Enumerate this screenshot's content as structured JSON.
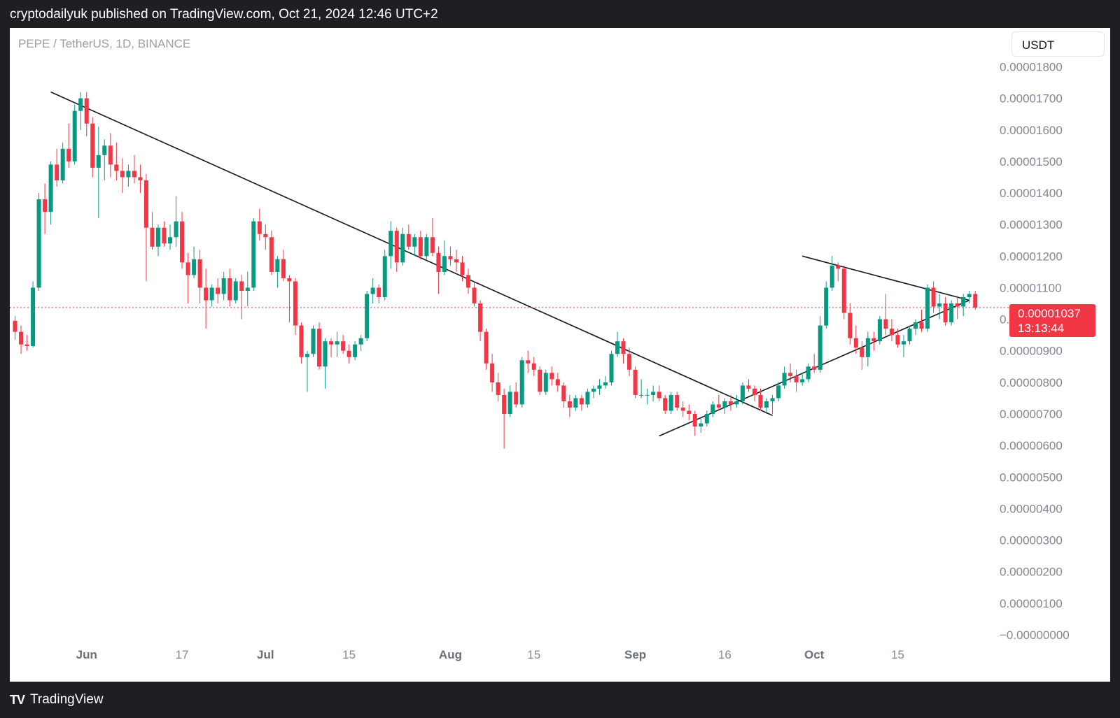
{
  "header": {
    "publisher": "cryptodailyuk published on TradingView.com, Oct 21, 2024 12:46 UTC+2"
  },
  "chart_header": {
    "symbol": "PEPE / TetherUS, 1D, BINANCE",
    "currency": "USDT"
  },
  "last_price": {
    "value": "0.00001037",
    "countdown": "13:13:44"
  },
  "footer": {
    "brand": "TradingView"
  },
  "colors": {
    "up": "#089981",
    "down": "#f23645",
    "trendline": "#131722",
    "price_line": "#f23645"
  },
  "chart_data": {
    "type": "candlestick",
    "x_start_date": "2024-05-20",
    "y_range": [
      -1e-07,
      1.9e-06
    ],
    "y_ticks": [
      "0.00001800",
      "0.00001700",
      "0.00001600",
      "0.00001500",
      "0.00001400",
      "0.00001300",
      "0.00001200",
      "0.00001100",
      "0.00001000",
      "0.00000900",
      "0.00000800",
      "0.00000700",
      "0.00000600",
      "0.00000500",
      "0.00000400",
      "0.00000300",
      "0.00000200",
      "0.00000100",
      "−0.00000000"
    ],
    "y_tick_values": [
      1.8e-05,
      1.7e-05,
      1.6e-05,
      1.5e-05,
      1.4e-05,
      1.3e-05,
      1.2e-05,
      1.1e-05,
      1e-05,
      9e-06,
      8e-06,
      7e-06,
      6e-06,
      5e-06,
      4e-06,
      3e-06,
      2e-06,
      1e-06,
      0
    ],
    "x_ticks": [
      {
        "label": "Jun",
        "date": "2024-06-01",
        "major": true
      },
      {
        "label": "17",
        "date": "2024-06-17",
        "major": false
      },
      {
        "label": "Jul",
        "date": "2024-07-01",
        "major": true
      },
      {
        "label": "15",
        "date": "2024-07-15",
        "major": false
      },
      {
        "label": "Aug",
        "date": "2024-08-01",
        "major": true
      },
      {
        "label": "15",
        "date": "2024-08-15",
        "major": false
      },
      {
        "label": "Sep",
        "date": "2024-09-01",
        "major": true
      },
      {
        "label": "16",
        "date": "2024-09-16",
        "major": false
      },
      {
        "label": "Oct",
        "date": "2024-10-01",
        "major": true
      },
      {
        "label": "15",
        "date": "2024-10-15",
        "major": false
      }
    ],
    "ohlc": [
      [
        9.95e-06,
        1.01e-05,
        9.35e-06,
        9.6e-06
      ],
      [
        9.6e-06,
        9.8e-06,
        8.9e-06,
        9.2e-06
      ],
      [
        9.2e-06,
        9.5e-06,
        9e-06,
        9.15e-06
      ],
      [
        9.15e-06,
        1.12e-05,
        9.1e-06,
        1.1e-05
      ],
      [
        1.1e-05,
        1.4e-05,
        1.09e-05,
        1.38e-05
      ],
      [
        1.38e-05,
        1.43e-05,
        1.27e-05,
        1.34e-05
      ],
      [
        1.34e-05,
        1.5e-05,
        1.3e-05,
        1.49e-05
      ],
      [
        1.49e-05,
        1.54e-05,
        1.42e-05,
        1.44e-05
      ],
      [
        1.44e-05,
        1.56e-05,
        1.43e-05,
        1.54e-05
      ],
      [
        1.54e-05,
        1.62e-05,
        1.48e-05,
        1.5e-05
      ],
      [
        1.5e-05,
        1.68e-05,
        1.49e-05,
        1.66e-05
      ],
      [
        1.66e-05,
        1.72e-05,
        1.6e-05,
        1.7e-05
      ],
      [
        1.7e-05,
        1.72e-05,
        1.58e-05,
        1.62e-05
      ],
      [
        1.62e-05,
        1.64e-05,
        1.45e-05,
        1.48e-05
      ],
      [
        1.48e-05,
        1.61e-05,
        1.32e-05,
        1.52e-05
      ],
      [
        1.52e-05,
        1.57e-05,
        1.44e-05,
        1.55e-05
      ],
      [
        1.55e-05,
        1.59e-05,
        1.45e-05,
        1.49e-05
      ],
      [
        1.49e-05,
        1.56e-05,
        1.44e-05,
        1.47e-05
      ],
      [
        1.47e-05,
        1.51e-05,
        1.4e-05,
        1.45e-05
      ],
      [
        1.45e-05,
        1.49e-05,
        1.42e-05,
        1.47e-05
      ],
      [
        1.47e-05,
        1.52e-05,
        1.43e-05,
        1.45e-05
      ],
      [
        1.45e-05,
        1.49e-05,
        1.4e-05,
        1.44e-05
      ],
      [
        1.44e-05,
        1.46e-05,
        1.12e-05,
        1.29e-05
      ],
      [
        1.29e-05,
        1.34e-05,
        1.22e-05,
        1.23e-05
      ],
      [
        1.23e-05,
        1.3e-05,
        1.2e-05,
        1.29e-05
      ],
      [
        1.29e-05,
        1.31e-05,
        1.23e-05,
        1.24e-05
      ],
      [
        1.24e-05,
        1.3e-05,
        1.22e-05,
        1.26e-05
      ],
      [
        1.26e-05,
        1.39e-05,
        1.23e-05,
        1.31e-05
      ],
      [
        1.31e-05,
        1.34e-05,
        1.16e-05,
        1.18e-05
      ],
      [
        1.18e-05,
        1.21e-05,
        1.05e-05,
        1.14e-05
      ],
      [
        1.14e-05,
        1.23e-05,
        1.13e-05,
        1.19e-05
      ],
      [
        1.19e-05,
        1.22e-05,
        1.05e-05,
        1.1e-05
      ],
      [
        1.1e-05,
        1.16e-05,
        9.7e-06,
        1.06e-05
      ],
      [
        1.06e-05,
        1.11e-05,
        1.04e-05,
        1.1e-05
      ],
      [
        1.1e-05,
        1.13e-05,
        1.05e-05,
        1.08e-05
      ],
      [
        1.08e-05,
        1.15e-05,
        1.06e-05,
        1.13e-05
      ],
      [
        1.13e-05,
        1.16e-05,
        1.04e-05,
        1.06e-05
      ],
      [
        1.06e-05,
        1.13e-05,
        1.05e-05,
        1.12e-05
      ],
      [
        1.12e-05,
        1.14e-05,
        1e-05,
        1.09e-05
      ],
      [
        1.09e-05,
        1.15e-05,
        1.04e-05,
        1.1e-05
      ],
      [
        1.1e-05,
        1.32e-05,
        1.09e-05,
        1.31e-05
      ],
      [
        1.31e-05,
        1.35e-05,
        1.25e-05,
        1.27e-05
      ],
      [
        1.27e-05,
        1.3e-05,
        1.22e-05,
        1.26e-05
      ],
      [
        1.26e-05,
        1.28e-05,
        1.14e-05,
        1.15e-05
      ],
      [
        1.15e-05,
        1.2e-05,
        1.1e-05,
        1.19e-05
      ],
      [
        1.19e-05,
        1.22e-05,
        1.12e-05,
        1.13e-05
      ],
      [
        1.13e-05,
        1.14e-05,
        9.9e-06,
        1.12e-05
      ],
      [
        1.12e-05,
        1.13e-05,
        9.5e-06,
        9.8e-06
      ],
      [
        9.8e-06,
        9.9e-06,
        8.6e-06,
        8.8e-06
      ],
      [
        8.8e-06,
        9e-06,
        7.7e-06,
        8.9e-06
      ],
      [
        8.9e-06,
        9.8e-06,
        8.8e-06,
        9.7e-06
      ],
      [
        9.7e-06,
        9.9e-06,
        8.4e-06,
        8.5e-06
      ],
      [
        8.5e-06,
        9.4e-06,
        7.8e-06,
        9.3e-06
      ],
      [
        9.3e-06,
        9.4e-06,
        8.8e-06,
        9.2e-06
      ],
      [
        9.2e-06,
        9.6e-06,
        8.8e-06,
        9.3e-06
      ],
      [
        9.3e-06,
        9.5e-06,
        8.9e-06,
        9e-06
      ],
      [
        9e-06,
        9.2e-06,
        8.6e-06,
        8.8e-06
      ],
      [
        8.8e-06,
        9.3e-06,
        8.7e-06,
        9.2e-06
      ],
      [
        9.2e-06,
        9.5e-06,
        9e-06,
        9.4e-06
      ],
      [
        9.4e-06,
        1.09e-05,
        9.3e-06,
        1.08e-05
      ],
      [
        1.08e-05,
        1.13e-05,
        1.05e-05,
        1.1e-05
      ],
      [
        1.1e-05,
        1.11e-05,
        1.05e-05,
        1.07e-05
      ],
      [
        1.07e-05,
        1.22e-05,
        1.06e-05,
        1.2e-05
      ],
      [
        1.2e-05,
        1.31e-05,
        1.16e-05,
        1.28e-05
      ],
      [
        1.28e-05,
        1.29e-05,
        1.15e-05,
        1.18e-05
      ],
      [
        1.18e-05,
        1.29e-05,
        1.17e-05,
        1.27e-05
      ],
      [
        1.27e-05,
        1.3e-05,
        1.22e-05,
        1.23e-05
      ],
      [
        1.23e-05,
        1.27e-05,
        1.2e-05,
        1.26e-05
      ],
      [
        1.26e-05,
        1.28e-05,
        1.19e-05,
        1.2e-05
      ],
      [
        1.2e-05,
        1.27e-05,
        1.19e-05,
        1.26e-05
      ],
      [
        1.26e-05,
        1.32e-05,
        1.2e-05,
        1.21e-05
      ],
      [
        1.21e-05,
        1.23e-05,
        1.08e-05,
        1.15e-05
      ],
      [
        1.15e-05,
        1.25e-05,
        1.14e-05,
        1.2e-05
      ],
      [
        1.2e-05,
        1.23e-05,
        1.17e-05,
        1.19e-05
      ],
      [
        1.19e-05,
        1.22e-05,
        1.15e-05,
        1.18e-05
      ],
      [
        1.18e-05,
        1.2e-05,
        1.12e-05,
        1.14e-05
      ],
      [
        1.14e-05,
        1.16e-05,
        1.08e-05,
        1.1e-05
      ],
      [
        1.1e-05,
        1.12e-05,
        1.04e-05,
        1.05e-05
      ],
      [
        1.05e-05,
        1.06e-05,
        9.3e-06,
        9.6e-06
      ],
      [
        9.6e-06,
        9.7e-06,
        8.4e-06,
        8.6e-06
      ],
      [
        8.6e-06,
        8.9e-06,
        7.7e-06,
        8e-06
      ],
      [
        8e-06,
        8.3e-06,
        7.4e-06,
        7.6e-06
      ],
      [
        7.6e-06,
        7.8e-06,
        5.9e-06,
        7e-06
      ],
      [
        7e-06,
        7.9e-06,
        6.9e-06,
        7.7e-06
      ],
      [
        7.7e-06,
        8e-06,
        7.2e-06,
        7.3e-06
      ],
      [
        7.3e-06,
        8.8e-06,
        7.2e-06,
        8.7e-06
      ],
      [
        8.7e-06,
        9e-06,
        8.3e-06,
        8.6e-06
      ],
      [
        8.6e-06,
        8.8e-06,
        8.2e-06,
        8.4e-06
      ],
      [
        8.4e-06,
        8.5e-06,
        7.6e-06,
        7.7e-06
      ],
      [
        7.7e-06,
        8.4e-06,
        7.6e-06,
        8.3e-06
      ],
      [
        8.3e-06,
        8.5e-06,
        7.9e-06,
        8.1e-06
      ],
      [
        8.1e-06,
        8.3e-06,
        7.7e-06,
        7.9e-06
      ],
      [
        7.9e-06,
        8e-06,
        7.2e-06,
        7.4e-06
      ],
      [
        7.4e-06,
        7.6e-06,
        6.9e-06,
        7.2e-06
      ],
      [
        7.2e-06,
        7.6e-06,
        7.1e-06,
        7.5e-06
      ],
      [
        7.5e-06,
        7.6e-06,
        7.1e-06,
        7.3e-06
      ],
      [
        7.3e-06,
        7.8e-06,
        7.2e-06,
        7.7e-06
      ],
      [
        7.7e-06,
        7.9e-06,
        7.5e-06,
        7.8e-06
      ],
      [
        7.8e-06,
        8.1e-06,
        7.6e-06,
        7.9e-06
      ],
      [
        7.9e-06,
        8.2e-06,
        7.8e-06,
        8e-06
      ],
      [
        8e-06,
        9e-06,
        7.9e-06,
        8.9e-06
      ],
      [
        8.9e-06,
        9.6e-06,
        8.8e-06,
        9.3e-06
      ],
      [
        9.3e-06,
        9.4e-06,
        8.6e-06,
        8.9e-06
      ],
      [
        8.9e-06,
        9.1e-06,
        8.2e-06,
        8.4e-06
      ],
      [
        8.4e-06,
        8.5e-06,
        7.5e-06,
        7.6e-06
      ],
      [
        7.6e-06,
        8.1e-06,
        7.5e-06,
        7.6e-06
      ],
      [
        7.6e-06,
        7.8e-06,
        7.3e-06,
        7.6e-06
      ],
      [
        7.6e-06,
        7.9e-06,
        7.4e-06,
        7.7e-06
      ],
      [
        7.7e-06,
        7.9e-06,
        7.4e-06,
        7.5e-06
      ],
      [
        7.5e-06,
        7.6e-06,
        7e-06,
        7.1e-06
      ],
      [
        7.1e-06,
        7.7e-06,
        7e-06,
        7.6e-06
      ],
      [
        7.6e-06,
        7.7e-06,
        7.1e-06,
        7.2e-06
      ],
      [
        7.2e-06,
        7.4e-06,
        6.9e-06,
        7.1e-06
      ],
      [
        7.1e-06,
        7.3e-06,
        6.8e-06,
        7e-06
      ],
      [
        7e-06,
        7.1e-06,
        6.3e-06,
        6.6e-06
      ],
      [
        6.6e-06,
        6.9e-06,
        6.4e-06,
        6.7e-06
      ],
      [
        6.7e-06,
        7.1e-06,
        6.6e-06,
        7e-06
      ],
      [
        7e-06,
        7.4e-06,
        6.9e-06,
        7.3e-06
      ],
      [
        7.3e-06,
        7.6e-06,
        7.1e-06,
        7.2e-06
      ],
      [
        7.2e-06,
        7.5e-06,
        7e-06,
        7.4e-06
      ],
      [
        7.4e-06,
        7.6e-06,
        7.1e-06,
        7.3e-06
      ],
      [
        7.3e-06,
        7.6e-06,
        7.2e-06,
        7.4e-06
      ],
      [
        7.4e-06,
        8e-06,
        7.3e-06,
        7.9e-06
      ],
      [
        7.9e-06,
        8.1e-06,
        7.7e-06,
        7.8e-06
      ],
      [
        7.8e-06,
        7.9e-06,
        7.4e-06,
        7.6e-06
      ],
      [
        7.6e-06,
        7.8e-06,
        7.1e-06,
        7.2e-06
      ],
      [
        7.2e-06,
        7.5e-06,
        7e-06,
        7.4e-06
      ],
      [
        7.4e-06,
        7.6e-06,
        7e-06,
        7.5e-06
      ],
      [
        7.5e-06,
        8e-06,
        7.4e-06,
        7.9e-06
      ],
      [
        7.9e-06,
        8.5e-06,
        7.8e-06,
        8.3e-06
      ],
      [
        8.3e-06,
        8.6e-06,
        8e-06,
        8.2e-06
      ],
      [
        8.2e-06,
        8.4e-06,
        7.7e-06,
        8e-06
      ],
      [
        8e-06,
        8.3e-06,
        7.9e-06,
        8.1e-06
      ],
      [
        8.1e-06,
        8.6e-06,
        8e-06,
        8.5e-06
      ],
      [
        8.5e-06,
        8.9e-06,
        8.3e-06,
        8.4e-06
      ],
      [
        8.4e-06,
        1.01e-05,
        8.3e-06,
        9.8e-06
      ],
      [
        9.8e-06,
        1.12e-05,
        9.7e-06,
        1.1e-05
      ],
      [
        1.1e-05,
        1.2e-05,
        1.09e-05,
        1.17e-05
      ],
      [
        1.17e-05,
        1.18e-05,
        1.12e-05,
        1.16e-05
      ],
      [
        1.16e-05,
        1.17e-05,
        1e-05,
        1.02e-05
      ],
      [
        1.02e-05,
        1.05e-05,
        9.2e-06,
        9.4e-06
      ],
      [
        9.4e-06,
        9.8e-06,
        8.9e-06,
        9.1e-06
      ],
      [
        9.1e-06,
        9.3e-06,
        8.4e-06,
        8.8e-06
      ],
      [
        8.8e-06,
        9.6e-06,
        8.5e-06,
        9.4e-06
      ],
      [
        9.4e-06,
        9.6e-06,
        9e-06,
        9.3e-06
      ],
      [
        9.3e-06,
        1.01e-05,
        9.2e-06,
        1e-05
      ],
      [
        1e-05,
        1.08e-05,
        9.5e-06,
        9.7e-06
      ],
      [
        9.7e-06,
        1e-05,
        9.3e-06,
        9.5e-06
      ],
      [
        9.5e-06,
        9.7e-06,
        9.1e-06,
        9.2e-06
      ],
      [
        9.2e-06,
        9.5e-06,
        8.8e-06,
        9.3e-06
      ],
      [
        9.3e-06,
        9.8e-06,
        9.2e-06,
        9.7e-06
      ],
      [
        9.7e-06,
        1e-05,
        9.5e-06,
        9.9e-06
      ],
      [
        9.9e-06,
        1.03e-05,
        9.6e-06,
        9.7e-06
      ],
      [
        9.7e-06,
        1.11e-05,
        9.6e-06,
        1.1e-05
      ],
      [
        1.1e-05,
        1.12e-05,
        1.02e-05,
        1.04e-05
      ],
      [
        1.04e-05,
        1.08e-05,
        1e-05,
        1.05e-05
      ],
      [
        1.05e-05,
        1.07e-05,
        9.8e-06,
        9.9e-06
      ],
      [
        9.9e-06,
        1.06e-05,
        9.8e-06,
        1.05e-05
      ],
      [
        1.05e-05,
        1.07e-05,
        1e-05,
        1.04e-05
      ],
      [
        1.04e-05,
        1.08e-05,
        1.01e-05,
        1.07e-05
      ],
      [
        1.07e-05,
        1.09e-05,
        1.05e-05,
        1.08e-05
      ],
      [
        1.08e-05,
        1.09e-05,
        1.03e-05,
        1.037e-05
      ]
    ],
    "trendlines": [
      {
        "name": "downtrend",
        "from": [
          "2024-05-26",
          1.72e-05
        ],
        "to": [
          "2024-09-24",
          6.95e-06
        ]
      },
      {
        "name": "triangle-upper",
        "from": [
          "2024-09-29",
          1.2e-05
        ],
        "to": [
          "2024-10-27",
          1.06e-05
        ]
      },
      {
        "name": "triangle-lower",
        "from": [
          "2024-09-05",
          6.3e-06
        ],
        "to": [
          "2024-10-27",
          1.06e-05
        ]
      }
    ],
    "last_price_line": 1.037e-05,
    "grid": false
  }
}
